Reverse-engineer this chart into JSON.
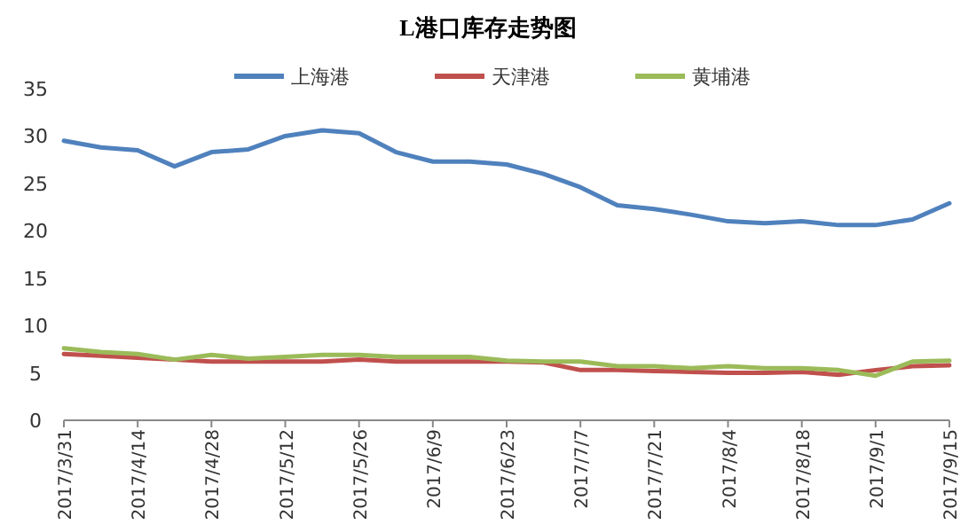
{
  "chart_data": {
    "type": "line",
    "title": "L港口库存走势图",
    "categories": [
      "2017/3/31",
      null,
      "2017/4/14",
      null,
      "2017/4/28",
      null,
      "2017/5/12",
      null,
      "2017/5/26",
      null,
      "2017/6/9",
      null,
      "2017/6/23",
      null,
      "2017/7/7",
      null,
      "2017/7/21",
      null,
      "2017/8/4",
      null,
      "2017/8/18",
      null,
      "2017/9/1",
      null,
      "2017/9/15"
    ],
    "series": [
      {
        "name": "上海港",
        "color": "#4f81bd",
        "values": [
          29.5,
          28.8,
          28.5,
          26.8,
          28.3,
          28.6,
          30.0,
          30.6,
          30.3,
          28.3,
          27.3,
          27.3,
          27.0,
          26.0,
          24.6,
          22.7,
          22.3,
          21.7,
          21.0,
          20.8,
          21.0,
          20.6,
          20.6,
          21.2,
          22.9
        ]
      },
      {
        "name": "天津港",
        "color": "#c0504d",
        "values": [
          7.0,
          6.8,
          6.6,
          6.4,
          6.2,
          6.2,
          6.2,
          6.2,
          6.4,
          6.2,
          6.2,
          6.2,
          6.2,
          6.1,
          5.3,
          5.3,
          5.2,
          5.1,
          5.0,
          5.0,
          5.1,
          4.8,
          5.3,
          5.7,
          5.8
        ]
      },
      {
        "name": "黄埔港",
        "color": "#9bbb59",
        "values": [
          7.6,
          7.2,
          7.0,
          6.4,
          6.9,
          6.5,
          6.7,
          6.9,
          6.9,
          6.7,
          6.7,
          6.7,
          6.3,
          6.2,
          6.2,
          5.7,
          5.7,
          5.5,
          5.7,
          5.5,
          5.5,
          5.3,
          4.7,
          6.2,
          6.3
        ]
      }
    ],
    "ylim": [
      0,
      35
    ],
    "yticks": [
      0,
      5,
      10,
      15,
      20,
      25,
      30,
      35
    ],
    "grid": false,
    "legend": "top"
  }
}
